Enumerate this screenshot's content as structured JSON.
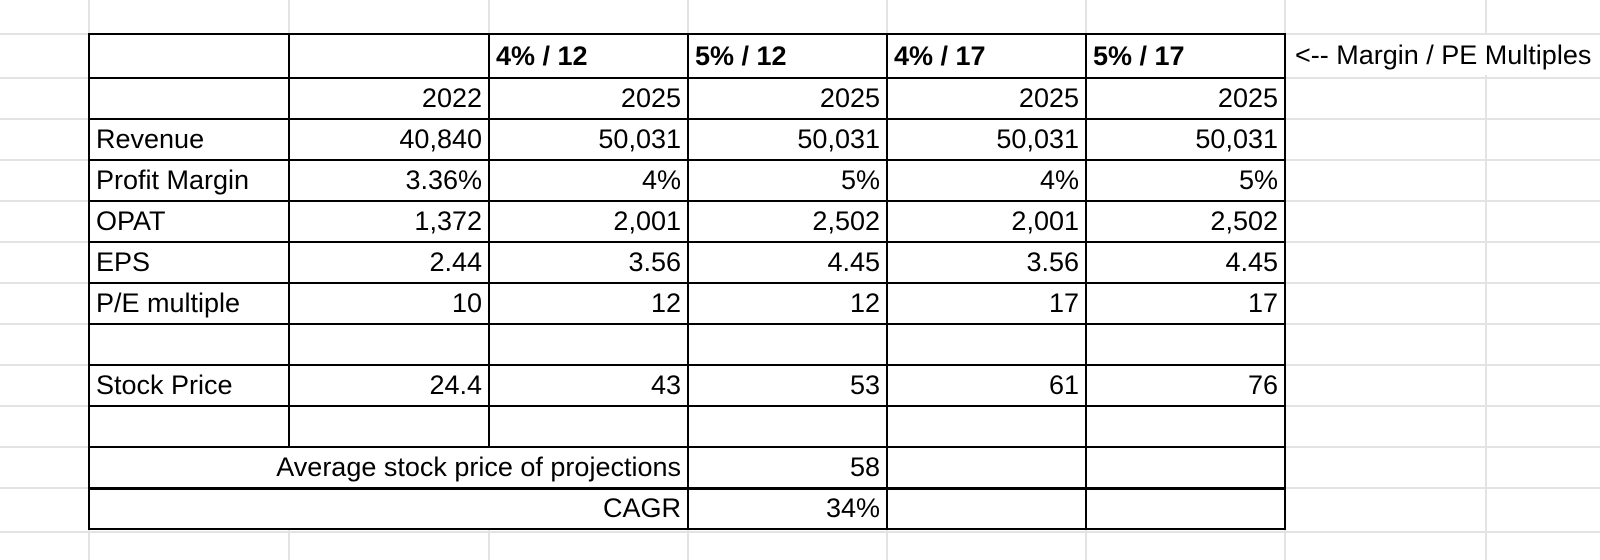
{
  "sheet": {
    "annotation": "<-- Margin / PE Multiples",
    "scenario_headers": [
      "4% / 12",
      "5% / 12",
      "4% / 17",
      "5% / 17"
    ],
    "years": [
      "2022",
      "2025",
      "2025",
      "2025",
      "2025"
    ],
    "rows": [
      {
        "label": "Revenue",
        "values": [
          "40,840",
          "50,031",
          "50,031",
          "50,031",
          "50,031"
        ]
      },
      {
        "label": "Profit Margin",
        "values": [
          "3.36%",
          "4%",
          "5%",
          "4%",
          "5%"
        ]
      },
      {
        "label": "OPAT",
        "values": [
          "1,372",
          "2,001",
          "2,502",
          "2,001",
          "2,502"
        ]
      },
      {
        "label": "EPS",
        "values": [
          "2.44",
          "3.56",
          "4.45",
          "3.56",
          "4.45"
        ]
      },
      {
        "label": "P/E multiple",
        "values": [
          "10",
          "12",
          "12",
          "17",
          "17"
        ]
      },
      {
        "label": "",
        "values": [
          "",
          "",
          "",
          "",
          ""
        ]
      },
      {
        "label": "Stock Price",
        "values": [
          "24.4",
          "43",
          "53",
          "61",
          "76"
        ]
      },
      {
        "label": "",
        "values": [
          "",
          "",
          "",
          "",
          ""
        ]
      }
    ],
    "summary_rows": [
      {
        "label": "Average stock price of projections",
        "value": "58"
      },
      {
        "label": "CAGR",
        "value": "34%"
      }
    ]
  }
}
